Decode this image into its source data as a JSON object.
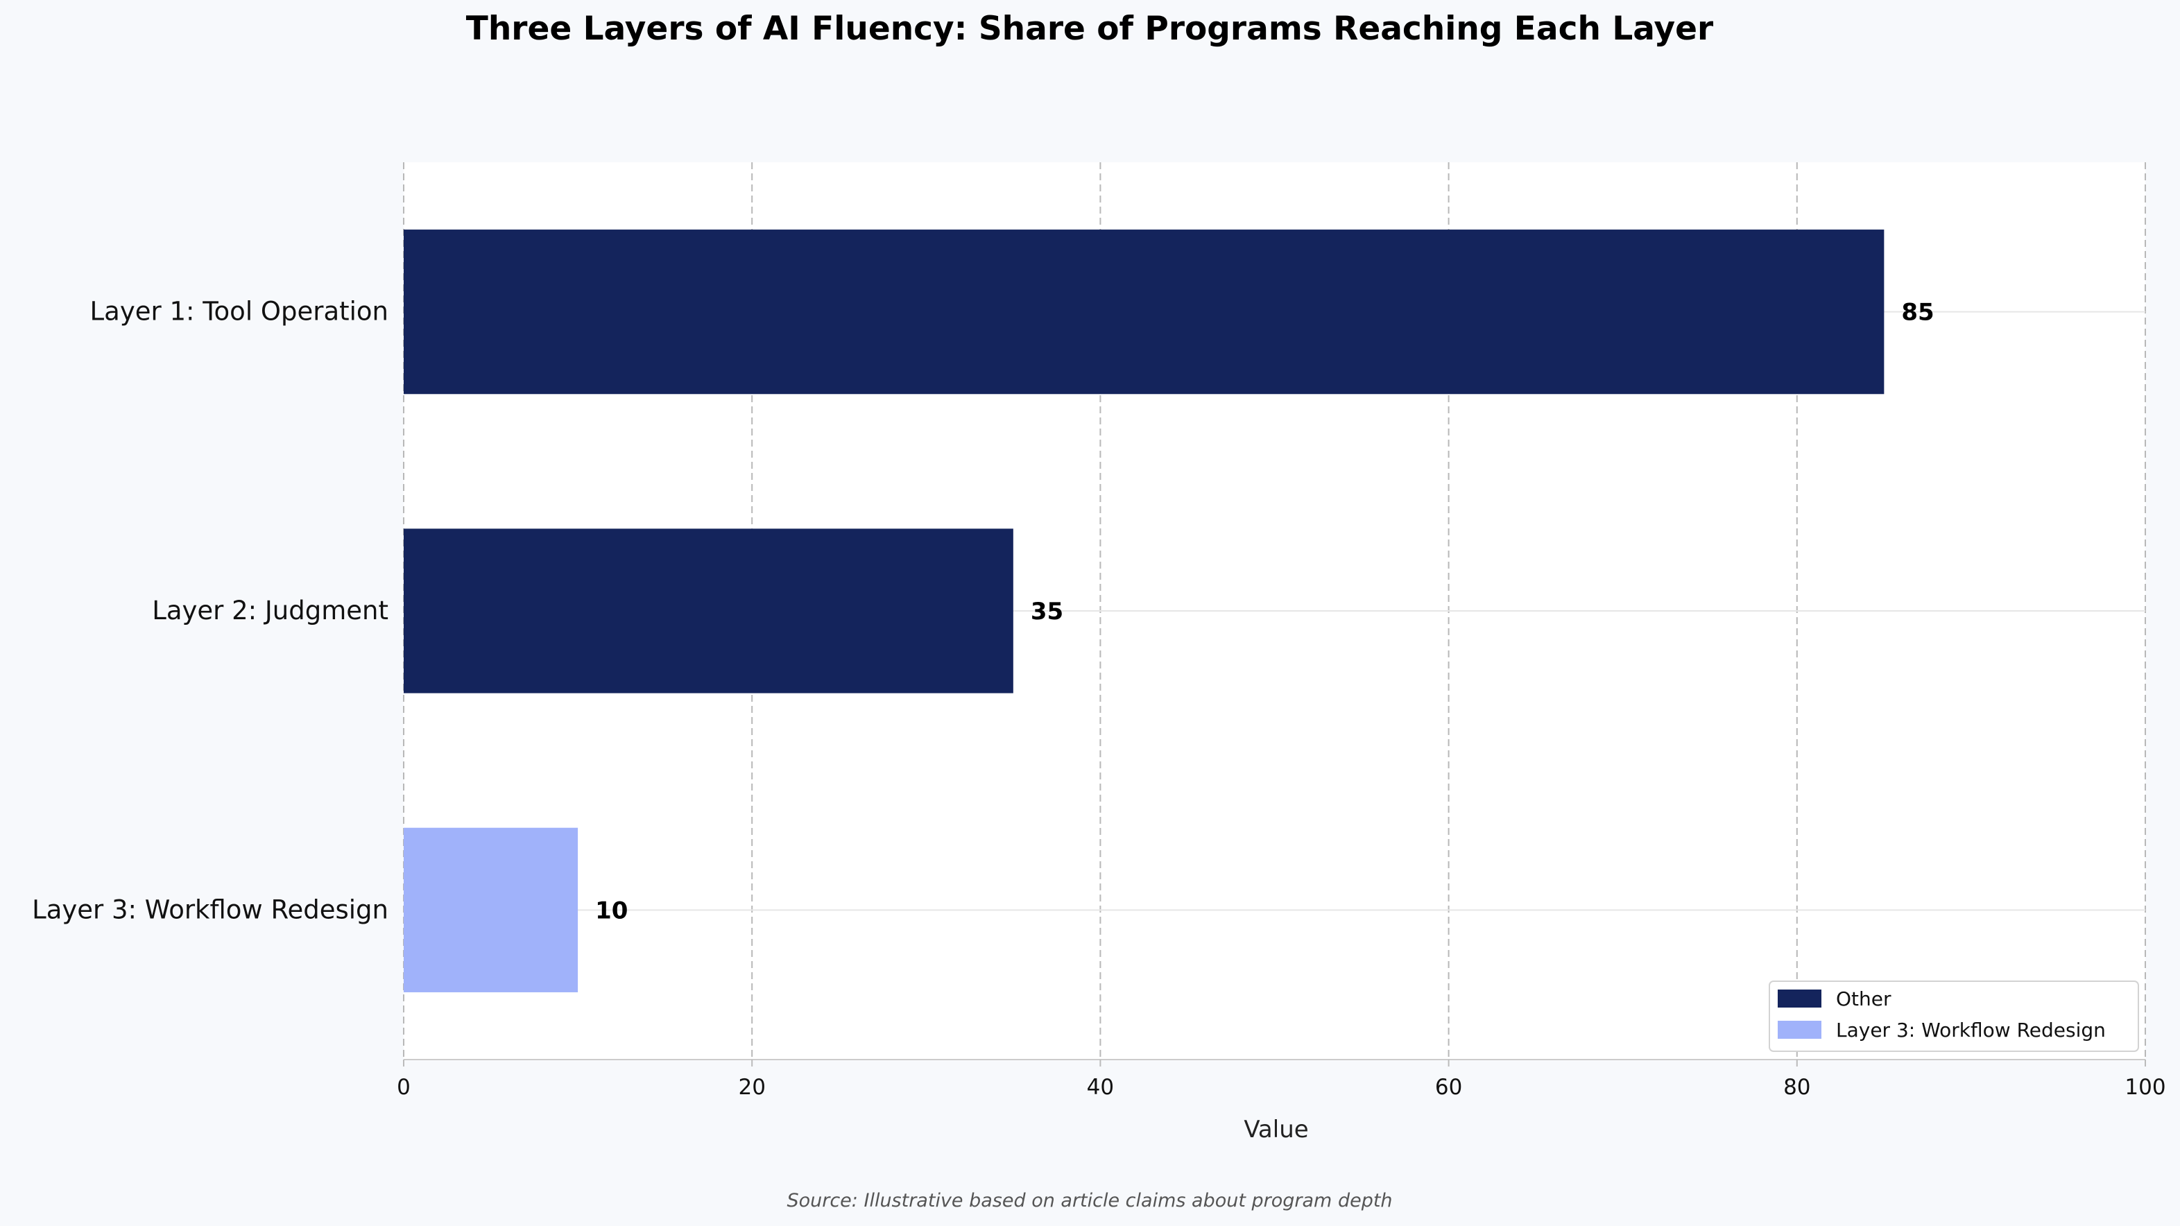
{
  "chart_data": {
    "type": "bar",
    "orientation": "horizontal",
    "title": "Three Layers of AI Fluency: Share of Programs Reaching Each Layer",
    "xlabel": "Value",
    "ylabel": "",
    "xlim": [
      0,
      100
    ],
    "xticks": [
      0,
      20,
      40,
      60,
      80,
      100
    ],
    "grid": true,
    "categories": [
      "Layer 1: Tool Operation",
      "Layer 2: Judgment",
      "Layer 3: Workflow Redesign"
    ],
    "values": [
      85,
      35,
      10
    ],
    "bar_groups": [
      "Other",
      "Other",
      "Layer 3: Workflow Redesign"
    ],
    "legend": {
      "placement": "bottom-right",
      "entries": [
        {
          "label": "Other",
          "color": "#14245c"
        },
        {
          "label": "Layer 3: Workflow Redesign",
          "color": "#a0b2fa"
        }
      ]
    },
    "source": "Source: Illustrative based on article claims about program depth"
  }
}
